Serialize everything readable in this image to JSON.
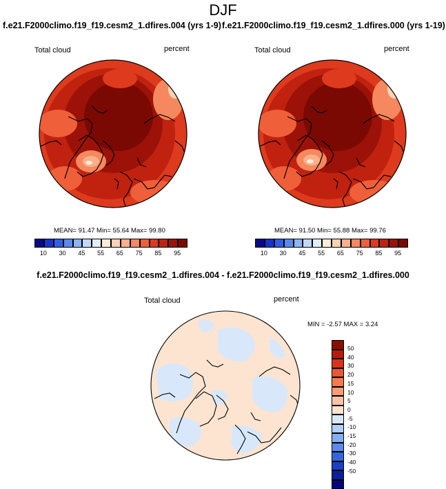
{
  "title": "DJF",
  "panel_left": {
    "run_title": "f.e21.F2000climo.f19_f19.cesm2_1.dfires.004 (yrs 1-9)",
    "variable": "Total cloud",
    "units": "percent",
    "stats": "MEAN=  91.47  Min=  55.64  Max=  99.80"
  },
  "panel_right": {
    "run_title": "f.e21.F2000climo.f19_f19.cesm2_1.dfires.000 (yrs 1-19)",
    "variable": "Total cloud",
    "units": "percent",
    "stats": "MEAN=  91.50  Min=  55.88  Max=  99.76"
  },
  "colorbar_abs": {
    "labels": [
      "10",
      "30",
      "45",
      "55",
      "65",
      "75",
      "85",
      "95"
    ],
    "colors": [
      "#08088a",
      "#1633cc",
      "#2f5fe6",
      "#5b88ef",
      "#8fb3f5",
      "#c2d8f9",
      "#e3eefc",
      "#fdebd9",
      "#fcd2b3",
      "#f9b08b",
      "#f5885e",
      "#ef5f39",
      "#de3a1e",
      "#c0220f",
      "#9c1208",
      "#7a0903"
    ]
  },
  "panel_diff": {
    "title": "f.e21.F2000climo.f19_f19.cesm2_1.dfires.004 - f.e21.F2000climo.f19_f19.cesm2_1.dfires.000",
    "variable": "Total cloud",
    "units": "percent",
    "stats": "MIN =  -2.57 MAX =   3.24",
    "levels": [
      "50",
      "40",
      "30",
      "20",
      "15",
      "10",
      "5",
      "0",
      "-5",
      "-10",
      "-15",
      "-20",
      "-30",
      "-40",
      "-50"
    ],
    "colors": [
      "#8b0e04",
      "#b81b0c",
      "#d8331a",
      "#ea5733",
      "#f47a52",
      "#f99c78",
      "#fcc3a7",
      "#fde4d0",
      "#d8e8fa",
      "#b2cff5",
      "#84aef0",
      "#5b8ae8",
      "#3566dd",
      "#1c3fc2",
      "#0a1f9a",
      "#04077a"
    ]
  }
}
